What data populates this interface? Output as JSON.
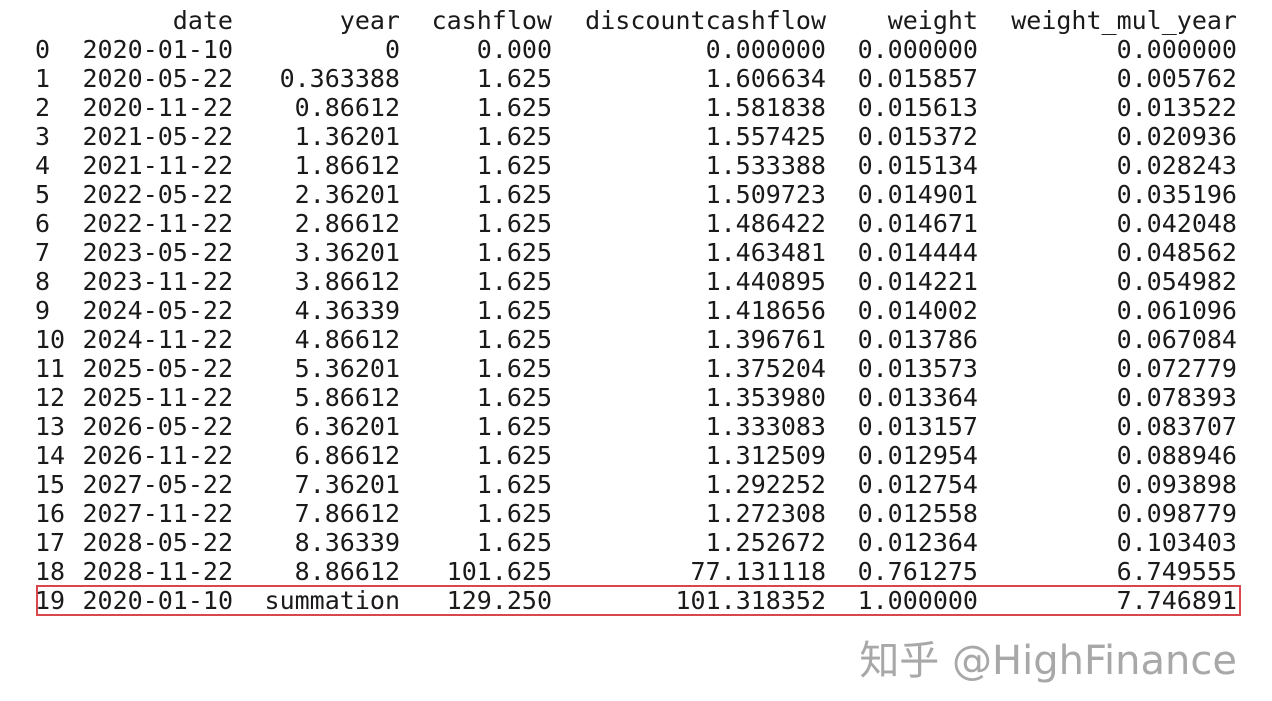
{
  "columns": [
    "",
    "date",
    "year",
    "cashflow",
    "discountcashflow",
    "weight",
    "weight_mul_year"
  ],
  "rows": [
    [
      "0",
      "2020-01-10",
      "0",
      "0.000",
      "0.000000",
      "0.000000",
      "0.000000"
    ],
    [
      "1",
      "2020-05-22",
      "0.363388",
      "1.625",
      "1.606634",
      "0.015857",
      "0.005762"
    ],
    [
      "2",
      "2020-11-22",
      "0.86612",
      "1.625",
      "1.581838",
      "0.015613",
      "0.013522"
    ],
    [
      "3",
      "2021-05-22",
      "1.36201",
      "1.625",
      "1.557425",
      "0.015372",
      "0.020936"
    ],
    [
      "4",
      "2021-11-22",
      "1.86612",
      "1.625",
      "1.533388",
      "0.015134",
      "0.028243"
    ],
    [
      "5",
      "2022-05-22",
      "2.36201",
      "1.625",
      "1.509723",
      "0.014901",
      "0.035196"
    ],
    [
      "6",
      "2022-11-22",
      "2.86612",
      "1.625",
      "1.486422",
      "0.014671",
      "0.042048"
    ],
    [
      "7",
      "2023-05-22",
      "3.36201",
      "1.625",
      "1.463481",
      "0.014444",
      "0.048562"
    ],
    [
      "8",
      "2023-11-22",
      "3.86612",
      "1.625",
      "1.440895",
      "0.014221",
      "0.054982"
    ],
    [
      "9",
      "2024-05-22",
      "4.36339",
      "1.625",
      "1.418656",
      "0.014002",
      "0.061096"
    ],
    [
      "10",
      "2024-11-22",
      "4.86612",
      "1.625",
      "1.396761",
      "0.013786",
      "0.067084"
    ],
    [
      "11",
      "2025-05-22",
      "5.36201",
      "1.625",
      "1.375204",
      "0.013573",
      "0.072779"
    ],
    [
      "12",
      "2025-11-22",
      "5.86612",
      "1.625",
      "1.353980",
      "0.013364",
      "0.078393"
    ],
    [
      "13",
      "2026-05-22",
      "6.36201",
      "1.625",
      "1.333083",
      "0.013157",
      "0.083707"
    ],
    [
      "14",
      "2026-11-22",
      "6.86612",
      "1.625",
      "1.312509",
      "0.012954",
      "0.088946"
    ],
    [
      "15",
      "2027-05-22",
      "7.36201",
      "1.625",
      "1.292252",
      "0.012754",
      "0.093898"
    ],
    [
      "16",
      "2027-11-22",
      "7.86612",
      "1.625",
      "1.272308",
      "0.012558",
      "0.098779"
    ],
    [
      "17",
      "2028-05-22",
      "8.36339",
      "1.625",
      "1.252672",
      "0.012364",
      "0.103403"
    ],
    [
      "18",
      "2028-11-22",
      "8.86612",
      "101.625",
      "77.131118",
      "0.761275",
      "6.749555"
    ],
    [
      "19",
      "2020-01-10",
      "summation",
      "129.250",
      "101.318352",
      "1.000000",
      "7.746891"
    ]
  ],
  "highlight_color": "#d9464c",
  "watermark": "知乎 @HighFinance"
}
